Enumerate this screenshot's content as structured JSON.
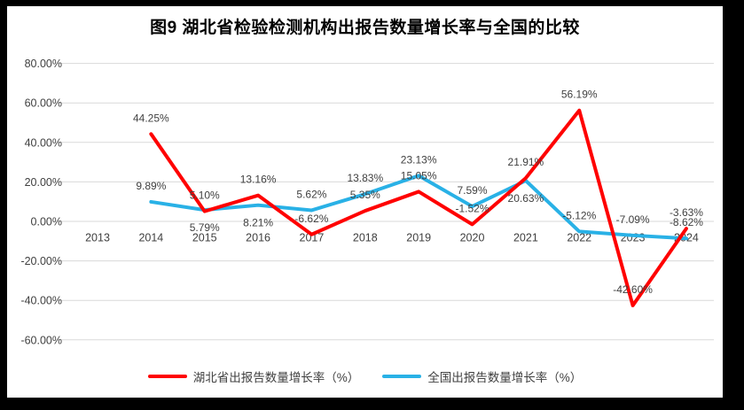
{
  "title": "图9 湖北省检验检测机构出报告数量增长率与全国的比较",
  "colors": {
    "frame": "#000000",
    "background": "#ffffff",
    "gridline": "#d9d9d9",
    "axis_text": "#404040",
    "label_text": "#404040",
    "hubei_line": "#ff0000",
    "national_line": "#29b1e6"
  },
  "chart_data": {
    "type": "line",
    "title": "图9 湖北省检验检测机构出报告数量增长率与全国的比较",
    "categories": [
      "2013",
      "2014",
      "2015",
      "2016",
      "2017",
      "2018",
      "2019",
      "2020",
      "2021",
      "2022",
      "2023",
      "2024"
    ],
    "xlabel": "",
    "ylabel": "",
    "grid": true,
    "legend_position": "bottom",
    "y_axis": {
      "min": -60,
      "max": 80,
      "step": 20,
      "unit": "%",
      "ticks": [
        "80.00%",
        "60.00%",
        "40.00%",
        "20.00%",
        "0.00%",
        "-20.00%",
        "-40.00%",
        "-60.00%"
      ]
    },
    "series": [
      {
        "name": "湖北省出报告数量增长率（%）",
        "color": "#ff0000",
        "values": [
          null,
          44.25,
          5.1,
          13.16,
          -6.62,
          5.35,
          15.05,
          -1.52,
          21.91,
          56.19,
          -42.6,
          -3.63
        ],
        "label_pos": [
          null,
          "above",
          "above",
          "above",
          "above",
          "above",
          "above",
          "above",
          "above",
          "above",
          "above",
          "above"
        ]
      },
      {
        "name": "全国出报告数量增长率（%）",
        "color": "#29b1e6",
        "values": [
          null,
          9.89,
          5.79,
          8.21,
          5.62,
          13.83,
          23.13,
          7.59,
          20.63,
          -5.12,
          -7.09,
          -8.62
        ],
        "label_pos": [
          null,
          "above",
          "below",
          "below",
          "above",
          "above",
          "above",
          "above",
          "below",
          "above",
          "above",
          "above"
        ]
      }
    ]
  }
}
